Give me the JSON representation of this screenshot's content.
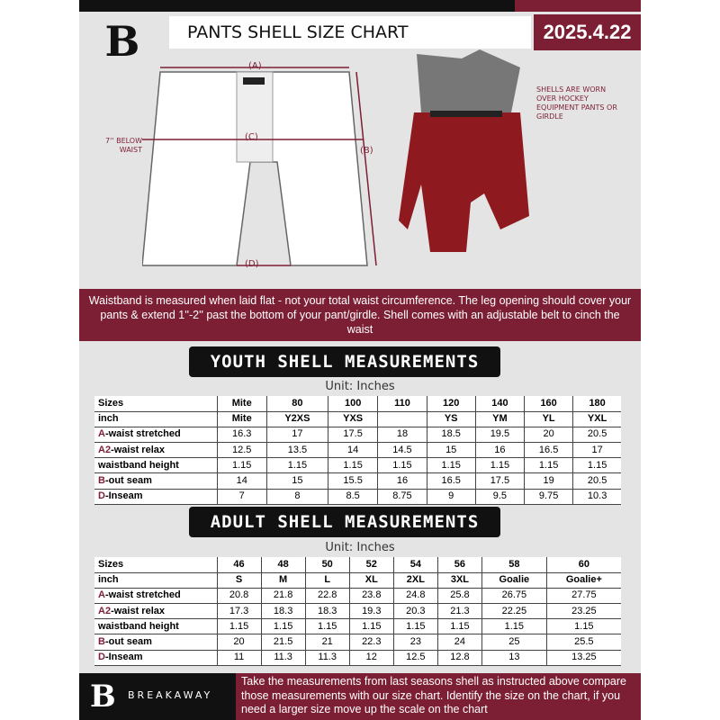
{
  "brand": {
    "logo_letter": "B",
    "name": "BREAKAWAY"
  },
  "header": {
    "title": "PANTS SHELL SIZE CHART",
    "date": "2025.4.22"
  },
  "diagram": {
    "label_a": "(A)",
    "label_b": "(B)",
    "label_c": "(C)",
    "label_d": "(D)",
    "waist_note": "7'' BELOW WAIST",
    "shell_note": "SHELLS ARE WORN OVER HOCKEY EQUIPMENT PANTS OR GIRDLE"
  },
  "info_band": "Waistband is measured when laid flat - not your total waist circumference. The leg opening should cover your pants & extend 1''-2'' past the bottom of your pant/girdle. Shell comes with an adjustable belt to cinch the waist",
  "youth": {
    "heading": "YOUTH SHELL MEASUREMENTS",
    "unit": "Unit: Inches",
    "rows": [
      {
        "k": "",
        "label": "Sizes",
        "v": [
          "Mite",
          "80",
          "100",
          "110",
          "120",
          "140",
          "160",
          "180"
        ]
      },
      {
        "k": "",
        "label": "inch",
        "v": [
          "Mite",
          "Y2XS",
          "YXS",
          "",
          "YS",
          "YM",
          "YL",
          "YXL"
        ]
      },
      {
        "k": "A",
        "label": "-waist stretched",
        "v": [
          "16.3",
          "17",
          "17.5",
          "18",
          "18.5",
          "19.5",
          "20",
          "20.5"
        ]
      },
      {
        "k": "A2",
        "label": "-waist relax",
        "v": [
          "12.5",
          "13.5",
          "14",
          "14.5",
          "15",
          "16",
          "16.5",
          "17"
        ]
      },
      {
        "k": "",
        "label": "waistband height",
        "v": [
          "1.15",
          "1.15",
          "1.15",
          "1.15",
          "1.15",
          "1.15",
          "1.15",
          "1.15"
        ]
      },
      {
        "k": "B",
        "label": "-out seam",
        "v": [
          "14",
          "15",
          "15.5",
          "16",
          "16.5",
          "17.5",
          "19",
          "20.5"
        ]
      },
      {
        "k": "D",
        "label": "-Inseam",
        "v": [
          "7",
          "8",
          "8.5",
          "8.75",
          "9",
          "9.5",
          "9.75",
          "10.3"
        ]
      }
    ]
  },
  "adult": {
    "heading": "ADULT SHELL MEASUREMENTS",
    "unit": "Unit: Inches",
    "rows": [
      {
        "k": "",
        "label": "Sizes",
        "v": [
          "46",
          "48",
          "50",
          "52",
          "54",
          "56",
          "58",
          "60"
        ]
      },
      {
        "k": "",
        "label": "inch",
        "v": [
          "S",
          "M",
          "L",
          "XL",
          "2XL",
          "3XL",
          "Goalie",
          "Goalie+"
        ]
      },
      {
        "k": "A",
        "label": "-waist stretched",
        "v": [
          "20.8",
          "21.8",
          "22.8",
          "23.8",
          "24.8",
          "25.8",
          "26.75",
          "27.75"
        ]
      },
      {
        "k": "A2",
        "label": "-waist relax",
        "v": [
          "17.3",
          "18.3",
          "18.3",
          "19.3",
          "20.3",
          "21.3",
          "22.25",
          "23.25"
        ]
      },
      {
        "k": "",
        "label": "waistband height",
        "v": [
          "1.15",
          "1.15",
          "1.15",
          "1.15",
          "1.15",
          "1.15",
          "1.15",
          "1.15"
        ]
      },
      {
        "k": "B",
        "label": "-out seam",
        "v": [
          "20",
          "21.5",
          "21",
          "22.3",
          "23",
          "24",
          "25",
          "25.5"
        ]
      },
      {
        "k": "D",
        "label": "-Inseam",
        "v": [
          "11",
          "11.3",
          "11.3",
          "12",
          "12.5",
          "12.8",
          "13",
          "13.25"
        ]
      }
    ]
  },
  "footer": {
    "text": "Take the measurements from last seasons shell as instructed above compare those measurements  with our size chart. Identify the size on the chart, if you need a larger size move up the scale on the chart"
  },
  "colors": {
    "accent": "#7d1f34",
    "dark": "#111111",
    "background": "#e4e4e4"
  }
}
